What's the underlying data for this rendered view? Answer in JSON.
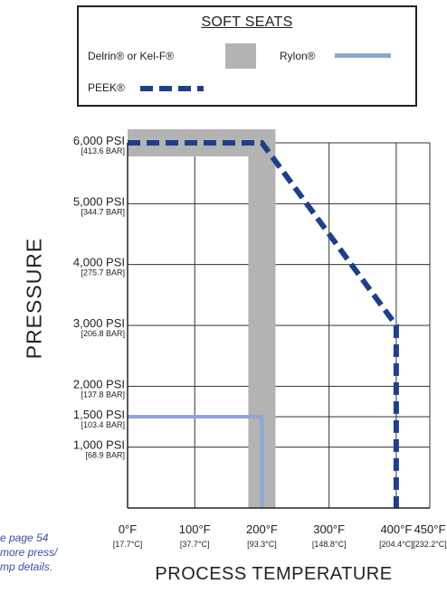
{
  "chart_data": {
    "type": "line",
    "xlabel": "PROCESS TEMPERATURE",
    "ylabel": "PRESSURE",
    "xlim": [
      0,
      450
    ],
    "ylim": [
      0,
      6000
    ],
    "x_ticks": [
      {
        "value": 0,
        "label": "0°F",
        "sublabel": "[17.7°C]"
      },
      {
        "value": 100,
        "label": "100°F",
        "sublabel": "[37.7°C]"
      },
      {
        "value": 200,
        "label": "200°F",
        "sublabel": "[93.3°C]"
      },
      {
        "value": 300,
        "label": "300°F",
        "sublabel": "[148.8°C]"
      },
      {
        "value": 400,
        "label": "400°F",
        "sublabel": "[204.4°C]"
      },
      {
        "value": 450,
        "label": "450°F",
        "sublabel": "[232.2°C]"
      }
    ],
    "y_ticks": [
      {
        "value": 1000,
        "label": "1,000 PSI",
        "sublabel": "[68.9 BAR]"
      },
      {
        "value": 1500,
        "label": "1,500 PSI",
        "sublabel": "[103.4 BAR]"
      },
      {
        "value": 2000,
        "label": "2,000 PSI",
        "sublabel": "[137.8 BAR]"
      },
      {
        "value": 3000,
        "label": "3,000 PSI",
        "sublabel": "[206.8 BAR]"
      },
      {
        "value": 4000,
        "label": "4,000 PSI",
        "sublabel": "[275.7 BAR]"
      },
      {
        "value": 5000,
        "label": "5,000 PSI",
        "sublabel": "[344.7 BAR]"
      },
      {
        "value": 6000,
        "label": "6,000 PSI",
        "sublabel": "[413.6 BAR]"
      }
    ],
    "grid": true,
    "legend": {
      "title": "SOFT SEATS",
      "placement": "top",
      "entries": [
        "Delrin® or Kel-F®",
        "Rylon®",
        "PEEK®"
      ]
    },
    "series": [
      {
        "name": "Delrin® or Kel-F®",
        "style": "thick-solid",
        "color": "#b3b3b3",
        "x": [
          0,
          200,
          200
        ],
        "y": [
          6000,
          6000,
          0
        ]
      },
      {
        "name": "Rylon®",
        "style": "solid",
        "color": "#8fa6d4",
        "x": [
          0,
          200,
          200
        ],
        "y": [
          1500,
          1500,
          0
        ]
      },
      {
        "name": "PEEK®",
        "style": "dashed",
        "color": "#1e3f8a",
        "x": [
          0,
          200,
          400,
          400
        ],
        "y": [
          6000,
          6000,
          3000,
          0
        ]
      }
    ]
  },
  "note_lines": [
    "e page 54",
    "more press/",
    "mp details."
  ]
}
